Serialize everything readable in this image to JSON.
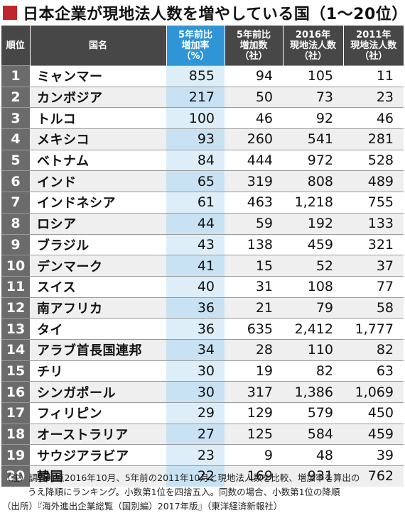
{
  "title": "日本企業が現地法人数を増やしている国（1〜20位）",
  "headers": {
    "rank": "順位",
    "country": "国名",
    "growth_rate": [
      "5年前比",
      "増加率",
      "（%）"
    ],
    "increase": [
      "5年前比",
      "増加数",
      "（社）"
    ],
    "count_2016": [
      "2016年",
      "現地法人数",
      "（社）"
    ],
    "count_2011": [
      "2011年",
      "現地法人数",
      "（社）"
    ]
  },
  "rows": [
    {
      "rank": "1",
      "country": "ミャンマー",
      "rate": "855",
      "increase": "94",
      "c2016": "105",
      "c2011": "11"
    },
    {
      "rank": "2",
      "country": "カンボジア",
      "rate": "217",
      "increase": "50",
      "c2016": "73",
      "c2011": "23"
    },
    {
      "rank": "3",
      "country": "トルコ",
      "rate": "100",
      "increase": "46",
      "c2016": "92",
      "c2011": "46"
    },
    {
      "rank": "4",
      "country": "メキシコ",
      "rate": "93",
      "increase": "260",
      "c2016": "541",
      "c2011": "281"
    },
    {
      "rank": "5",
      "country": "ベトナム",
      "rate": "84",
      "increase": "444",
      "c2016": "972",
      "c2011": "528"
    },
    {
      "rank": "6",
      "country": "インド",
      "rate": "65",
      "increase": "319",
      "c2016": "808",
      "c2011": "489"
    },
    {
      "rank": "7",
      "country": "インドネシア",
      "rate": "61",
      "increase": "463",
      "c2016": "1,218",
      "c2011": "755"
    },
    {
      "rank": "8",
      "country": "ロシア",
      "rate": "44",
      "increase": "59",
      "c2016": "192",
      "c2011": "133"
    },
    {
      "rank": "9",
      "country": "ブラジル",
      "rate": "43",
      "increase": "138",
      "c2016": "459",
      "c2011": "321"
    },
    {
      "rank": "10",
      "country": "デンマーク",
      "rate": "41",
      "increase": "15",
      "c2016": "52",
      "c2011": "37"
    },
    {
      "rank": "11",
      "country": "スイス",
      "rate": "40",
      "increase": "31",
      "c2016": "108",
      "c2011": "77"
    },
    {
      "rank": "12",
      "country": "南アフリカ",
      "rate": "36",
      "increase": "21",
      "c2016": "79",
      "c2011": "58"
    },
    {
      "rank": "13",
      "country": "タイ",
      "rate": "36",
      "increase": "635",
      "c2016": "2,412",
      "c2011": "1,777"
    },
    {
      "rank": "14",
      "country": "アラブ首長国連邦",
      "rate": "34",
      "increase": "28",
      "c2016": "110",
      "c2011": "82"
    },
    {
      "rank": "15",
      "country": "チリ",
      "rate": "30",
      "increase": "19",
      "c2016": "82",
      "c2011": "63"
    },
    {
      "rank": "16",
      "country": "シンガポール",
      "rate": "30",
      "increase": "317",
      "c2016": "1,386",
      "c2011": "1,069"
    },
    {
      "rank": "17",
      "country": "フィリピン",
      "rate": "29",
      "increase": "129",
      "c2016": "579",
      "c2011": "450"
    },
    {
      "rank": "18",
      "country": "オーストラリア",
      "rate": "27",
      "increase": "125",
      "c2016": "584",
      "c2011": "459"
    },
    {
      "rank": "19",
      "country": "サウジアラビア",
      "rate": "23",
      "increase": "9",
      "c2016": "48",
      "c2011": "39"
    },
    {
      "rank": "20",
      "country": "韓国",
      "rate": "22",
      "increase": "169",
      "c2016": "931",
      "c2011": "762"
    }
  ],
  "notes": {
    "line1": "（注）調査時点2016年10月、5年前の2011年10月と現地法人数を比較、増加率を算出の",
    "line2": "うえ降順にランキング。小数第1位を四捨五入。同数の場合、小数第1位の降順",
    "line3": "（出所）『海外進出企業総覧（国別編）2017年版』（東洋経済新報社）"
  },
  "colors": {
    "accent_square": "#c0272d",
    "header_dark": "#474747",
    "header_highlight": "#2f95d6",
    "rank_cell": "#6b6b6b",
    "highlight_column": "#ddeef9"
  }
}
